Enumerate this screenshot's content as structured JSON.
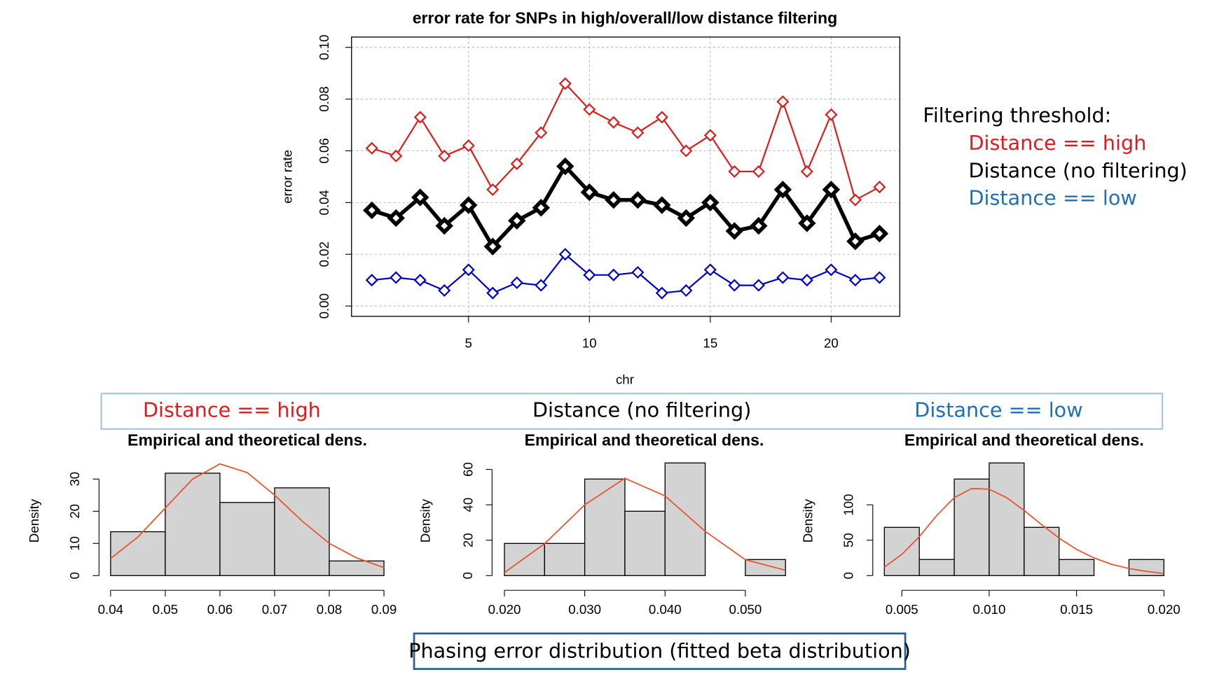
{
  "chart_data": [
    {
      "type": "line",
      "title": "error rate for SNPs in high/overall/low distance filtering",
      "xlabel": "chr",
      "ylabel": "error rate",
      "legend_title": "Filtering threshold:",
      "legend": "right",
      "grid": true,
      "x": [
        1,
        2,
        3,
        4,
        5,
        6,
        7,
        8,
        9,
        10,
        11,
        12,
        13,
        14,
        15,
        16,
        17,
        18,
        19,
        20,
        21,
        22
      ],
      "series": [
        {
          "name": "Distance == high",
          "color": "#dd1c1c",
          "legend_color": "#e0191f",
          "line_width": 2,
          "values": [
            0.061,
            0.058,
            0.073,
            0.058,
            0.062,
            0.045,
            0.055,
            0.067,
            0.086,
            0.076,
            0.071,
            0.067,
            0.073,
            0.06,
            0.066,
            0.052,
            0.052,
            0.079,
            0.052,
            0.074,
            0.041,
            0.046
          ]
        },
        {
          "name": "Distance (no filtering)",
          "color": "#000000",
          "legend_color": "#000000",
          "line_width": 5,
          "values": [
            0.037,
            0.034,
            0.042,
            0.031,
            0.039,
            0.023,
            0.033,
            0.038,
            0.054,
            0.044,
            0.041,
            0.041,
            0.039,
            0.034,
            0.04,
            0.029,
            0.031,
            0.045,
            0.032,
            0.045,
            0.025,
            0.028
          ]
        },
        {
          "name": "Distance == low",
          "color": "#0000cc",
          "legend_color": "#1f6fb4",
          "line_width": 2,
          "values": [
            0.01,
            0.011,
            0.01,
            0.006,
            0.014,
            0.005,
            0.009,
            0.008,
            0.02,
            0.012,
            0.012,
            0.013,
            0.005,
            0.006,
            0.014,
            0.008,
            0.008,
            0.011,
            0.01,
            0.014,
            0.01,
            0.011
          ]
        }
      ],
      "xlim": [
        0.16,
        22.84
      ],
      "xticks": [
        5,
        10,
        15,
        20
      ],
      "ylim": [
        -0.004,
        0.104
      ],
      "yticks": [
        {
          "value": 0,
          "label": "0.00"
        },
        {
          "value": 0.02,
          "label": "0.02"
        },
        {
          "value": 0.04,
          "label": "0.04"
        },
        {
          "value": 0.06,
          "label": "0.06"
        },
        {
          "value": 0.08,
          "label": "0.08"
        },
        {
          "value": 0.1,
          "label": "0.10"
        }
      ]
    },
    {
      "type": "histogram",
      "panel_label": "Distance == high",
      "panel_label_color": "#e0191f",
      "title": "Empirical and theoretical dens.",
      "ylabel": "Density",
      "color": "#d3d3d3",
      "bins": [
        0.04,
        0.05,
        0.06,
        0.07,
        0.08,
        0.09
      ],
      "values": [
        13.64,
        31.82,
        22.73,
        27.27,
        4.55
      ],
      "curve": {
        "color": "#e8532f",
        "x": [
          0.04,
          0.045,
          0.05,
          0.055,
          0.06,
          0.065,
          0.07,
          0.075,
          0.08,
          0.085,
          0.09
        ],
        "values": [
          5.3,
          12,
          21,
          30,
          34.7,
          32,
          25,
          17,
          10,
          5.5,
          2.5
        ]
      },
      "xlim": [
        0.04,
        0.09
      ],
      "xticks": [
        0.04,
        0.05,
        0.06,
        0.07,
        0.08,
        0.09
      ],
      "ylim": [
        0,
        35
      ],
      "yticks": [
        0,
        10,
        20,
        30
      ]
    },
    {
      "type": "histogram",
      "panel_label": "Distance (no filtering)",
      "panel_label_color": "#000000",
      "title": "Empirical and theoretical dens.",
      "ylabel": "Density",
      "color": "#d3d3d3",
      "bins": [
        0.02,
        0.025,
        0.03,
        0.035,
        0.04,
        0.045,
        0.05,
        0.055
      ],
      "values": [
        18.18,
        18.18,
        54.55,
        36.36,
        63.64,
        0,
        9.09
      ],
      "curve": {
        "color": "#e8532f",
        "x": [
          0.02,
          0.025,
          0.03,
          0.035,
          0.04,
          0.045,
          0.05,
          0.055
        ],
        "values": [
          1.7,
          18,
          40,
          55,
          45,
          25,
          9,
          3
        ]
      },
      "xlim": [
        0.02,
        0.055
      ],
      "xticks": [
        {
          "value": 0.02,
          "label": "0.020"
        },
        {
          "value": 0.03,
          "label": "0.030"
        },
        {
          "value": 0.04,
          "label": "0.040"
        },
        {
          "value": 0.05,
          "label": "0.050"
        }
      ],
      "ylim": [
        0,
        63.64
      ],
      "yticks": [
        0,
        20,
        40,
        60
      ]
    },
    {
      "type": "histogram",
      "panel_label": "Distance == low",
      "panel_label_color": "#1f6fb4",
      "title": "Empirical and theoretical dens.",
      "ylabel": "Density",
      "color": "#d3d3d3",
      "bins": [
        0.004,
        0.006,
        0.008,
        0.01,
        0.012,
        0.014,
        0.016,
        0.018,
        0.02
      ],
      "values": [
        68.18,
        22.73,
        136.36,
        159.09,
        68.18,
        22.73,
        0,
        22.73
      ],
      "curve": {
        "color": "#e8532f",
        "x": [
          0.004,
          0.005,
          0.006,
          0.007,
          0.008,
          0.009,
          0.01,
          0.011,
          0.012,
          0.013,
          0.014,
          0.015,
          0.016,
          0.017,
          0.018,
          0.019,
          0.02
        ],
        "values": [
          12,
          30,
          55,
          85,
          110,
          123,
          122,
          110,
          92,
          72,
          53,
          37,
          25,
          16,
          10,
          6,
          3
        ]
      },
      "xlim": [
        0.004,
        0.02
      ],
      "xticks": [
        {
          "value": 0.005,
          "label": "0.005"
        },
        {
          "value": 0.01,
          "label": "0.010"
        },
        {
          "value": 0.015,
          "label": "0.015"
        },
        {
          "value": 0.02,
          "label": "0.020"
        }
      ],
      "ylim": [
        0,
        159.09
      ],
      "yticks": [
        0,
        50,
        100
      ]
    }
  ],
  "caption": "Phasing error distribution (fitted beta distribution)"
}
